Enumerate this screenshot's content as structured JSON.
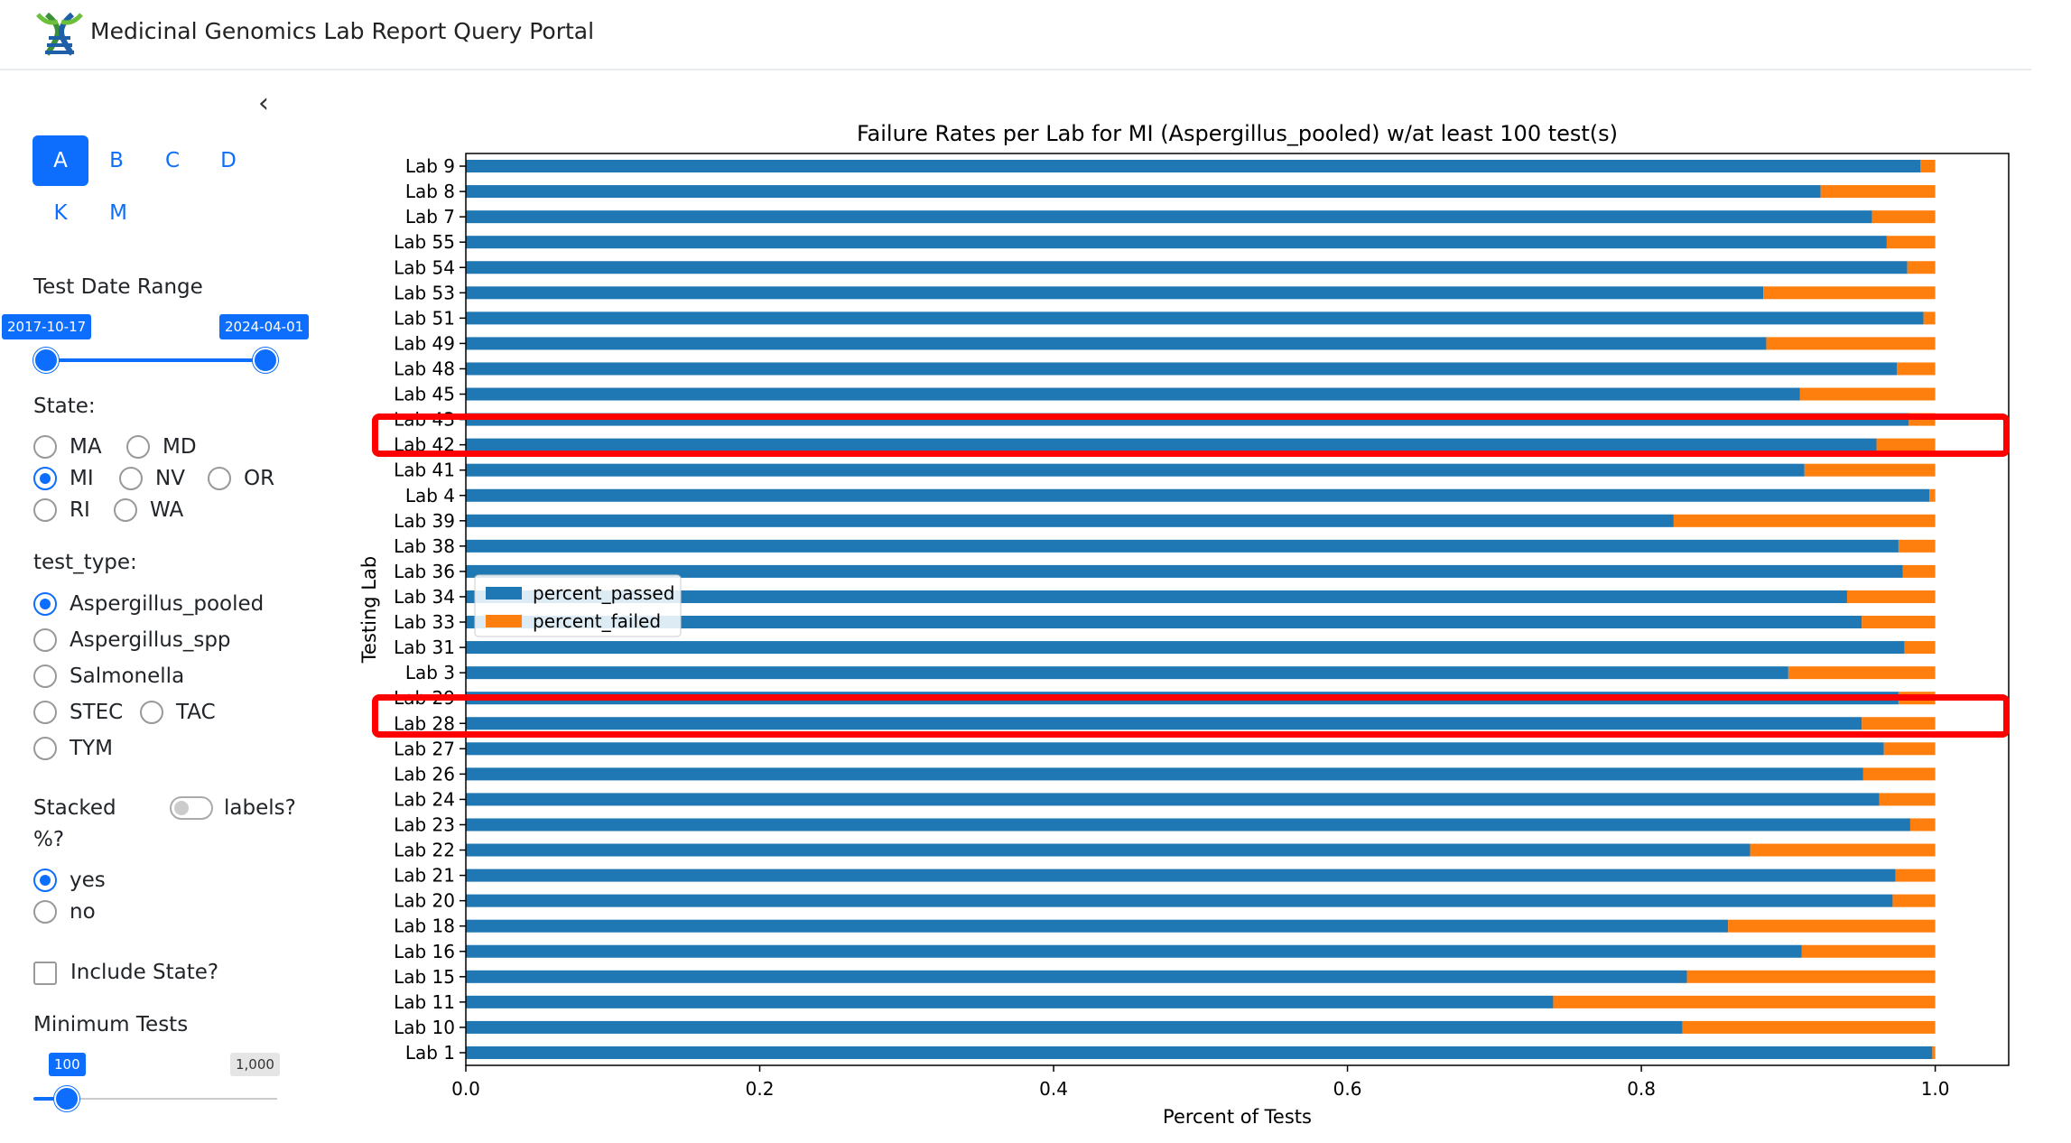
{
  "app": {
    "title": "Medicinal Genomics Lab Report Query Portal"
  },
  "sidebar": {
    "tabs": [
      "A",
      "B",
      "C",
      "D",
      "K",
      "M"
    ],
    "active_tab": "A",
    "date_range": {
      "label": "Test Date Range",
      "start": "2017-10-17",
      "end": "2024-04-01"
    },
    "state": {
      "label": "State:",
      "options": [
        "MA",
        "MD",
        "MI",
        "NV",
        "OR",
        "RI",
        "WA"
      ],
      "selected": "MI"
    },
    "test_type": {
      "label": "test_type:",
      "options": [
        "Aspergillus_pooled",
        "Aspergillus_spp",
        "Salmonella",
        "STEC",
        "TAC",
        "TYM"
      ],
      "selected": "Aspergillus_pooled"
    },
    "stacked": {
      "label": "Stacked",
      "label2": "%?",
      "toggle_label": "labels?",
      "options": [
        "yes",
        "no"
      ],
      "selected": "yes"
    },
    "include_state": {
      "label": "Include State?",
      "checked": false
    },
    "min_tests": {
      "label": "Minimum Tests",
      "value": "100",
      "max": "1,000",
      "fraction": 0.0
    }
  },
  "chart_data": {
    "type": "bar",
    "orientation": "horizontal",
    "stacked": true,
    "title": "Failure Rates per Lab for MI (Aspergillus_pooled) w/at least 100 test(s)",
    "xlabel": "Percent of Tests",
    "ylabel": "Testing Lab",
    "xlim": [
      0.0,
      1.05
    ],
    "xticks": [
      "0.0",
      "0.2",
      "0.4",
      "0.6",
      "0.8",
      "1.0"
    ],
    "legend": {
      "placement": "center-left"
    },
    "categories": [
      "Lab 9",
      "Lab 8",
      "Lab 7",
      "Lab 55",
      "Lab 54",
      "Lab 53",
      "Lab 51",
      "Lab 49",
      "Lab 48",
      "Lab 45",
      "Lab 43",
      "Lab 42",
      "Lab 41",
      "Lab 4",
      "Lab 39",
      "Lab 38",
      "Lab 36",
      "Lab 34",
      "Lab 33",
      "Lab 31",
      "Lab 3",
      "Lab 29",
      "Lab 28",
      "Lab 27",
      "Lab 26",
      "Lab 24",
      "Lab 23",
      "Lab 22",
      "Lab 21",
      "Lab 20",
      "Lab 18",
      "Lab 16",
      "Lab 15",
      "Lab 11",
      "Lab 10",
      "Lab 1"
    ],
    "series": [
      {
        "name": "percent_passed",
        "color": "#1f77b4",
        "values": [
          0.99,
          0.922,
          0.957,
          0.967,
          0.981,
          0.883,
          0.992,
          0.885,
          0.974,
          0.908,
          0.982,
          0.96,
          0.911,
          0.996,
          0.822,
          0.975,
          0.978,
          0.94,
          0.95,
          0.979,
          0.9,
          0.975,
          0.95,
          0.965,
          0.951,
          0.962,
          0.983,
          0.874,
          0.973,
          0.971,
          0.859,
          0.909,
          0.831,
          0.74,
          0.828,
          0.998
        ]
      },
      {
        "name": "percent_failed",
        "color": "#ff7f0e",
        "values": [
          0.01,
          0.078,
          0.043,
          0.033,
          0.019,
          0.117,
          0.008,
          0.115,
          0.026,
          0.092,
          0.018,
          0.04,
          0.089,
          0.004,
          0.178,
          0.025,
          0.022,
          0.06,
          0.05,
          0.021,
          0.1,
          0.025,
          0.05,
          0.035,
          0.049,
          0.038,
          0.017,
          0.126,
          0.027,
          0.029,
          0.141,
          0.091,
          0.169,
          0.26,
          0.172,
          0.002
        ]
      }
    ],
    "highlighted": [
      "Lab 42",
      "Lab 28"
    ],
    "highlight_color": "#ff0000"
  }
}
